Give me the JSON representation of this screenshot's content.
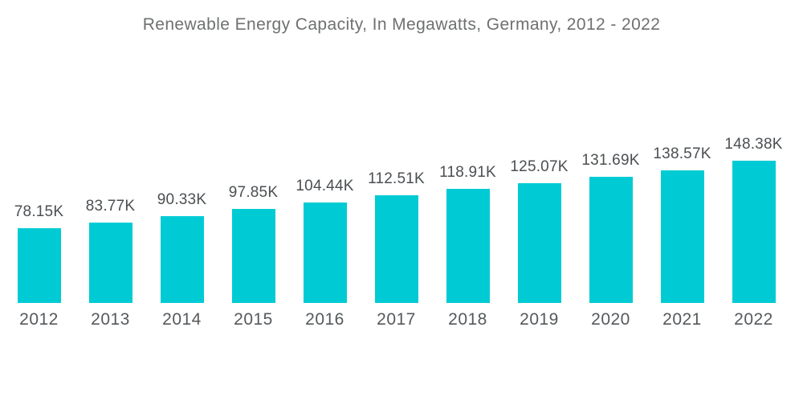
{
  "page": {
    "background": "#ffffff"
  },
  "chart_data": {
    "type": "bar",
    "title": "Renewable Energy Capacity, In Megawatts, Germany, 2012 - 2022",
    "categories": [
      "2012",
      "2013",
      "2014",
      "2015",
      "2016",
      "2017",
      "2018",
      "2019",
      "2020",
      "2021",
      "2022"
    ],
    "values": [
      78.15,
      83.77,
      90.33,
      97.85,
      104.44,
      112.51,
      118.91,
      125.07,
      131.69,
      138.57,
      148.38
    ],
    "value_labels": [
      "78.15K",
      "83.77K",
      "90.33K",
      "97.85K",
      "104.44K",
      "112.51K",
      "118.91K",
      "125.07K",
      "131.69K",
      "138.57K",
      "148.38K"
    ],
    "value_unit": "thousand megawatts",
    "xlabel": "",
    "ylabel": "",
    "ylim": [
      0,
      148.38
    ],
    "grid": false,
    "legend": false,
    "axes_visible": false,
    "bar_labels_position": "above-bar",
    "colors": {
      "bar": "#00cbd4",
      "title_text": "#6e7071",
      "value_label_text": "#4b4f52",
      "axis_tick_text": "#55595c"
    }
  }
}
